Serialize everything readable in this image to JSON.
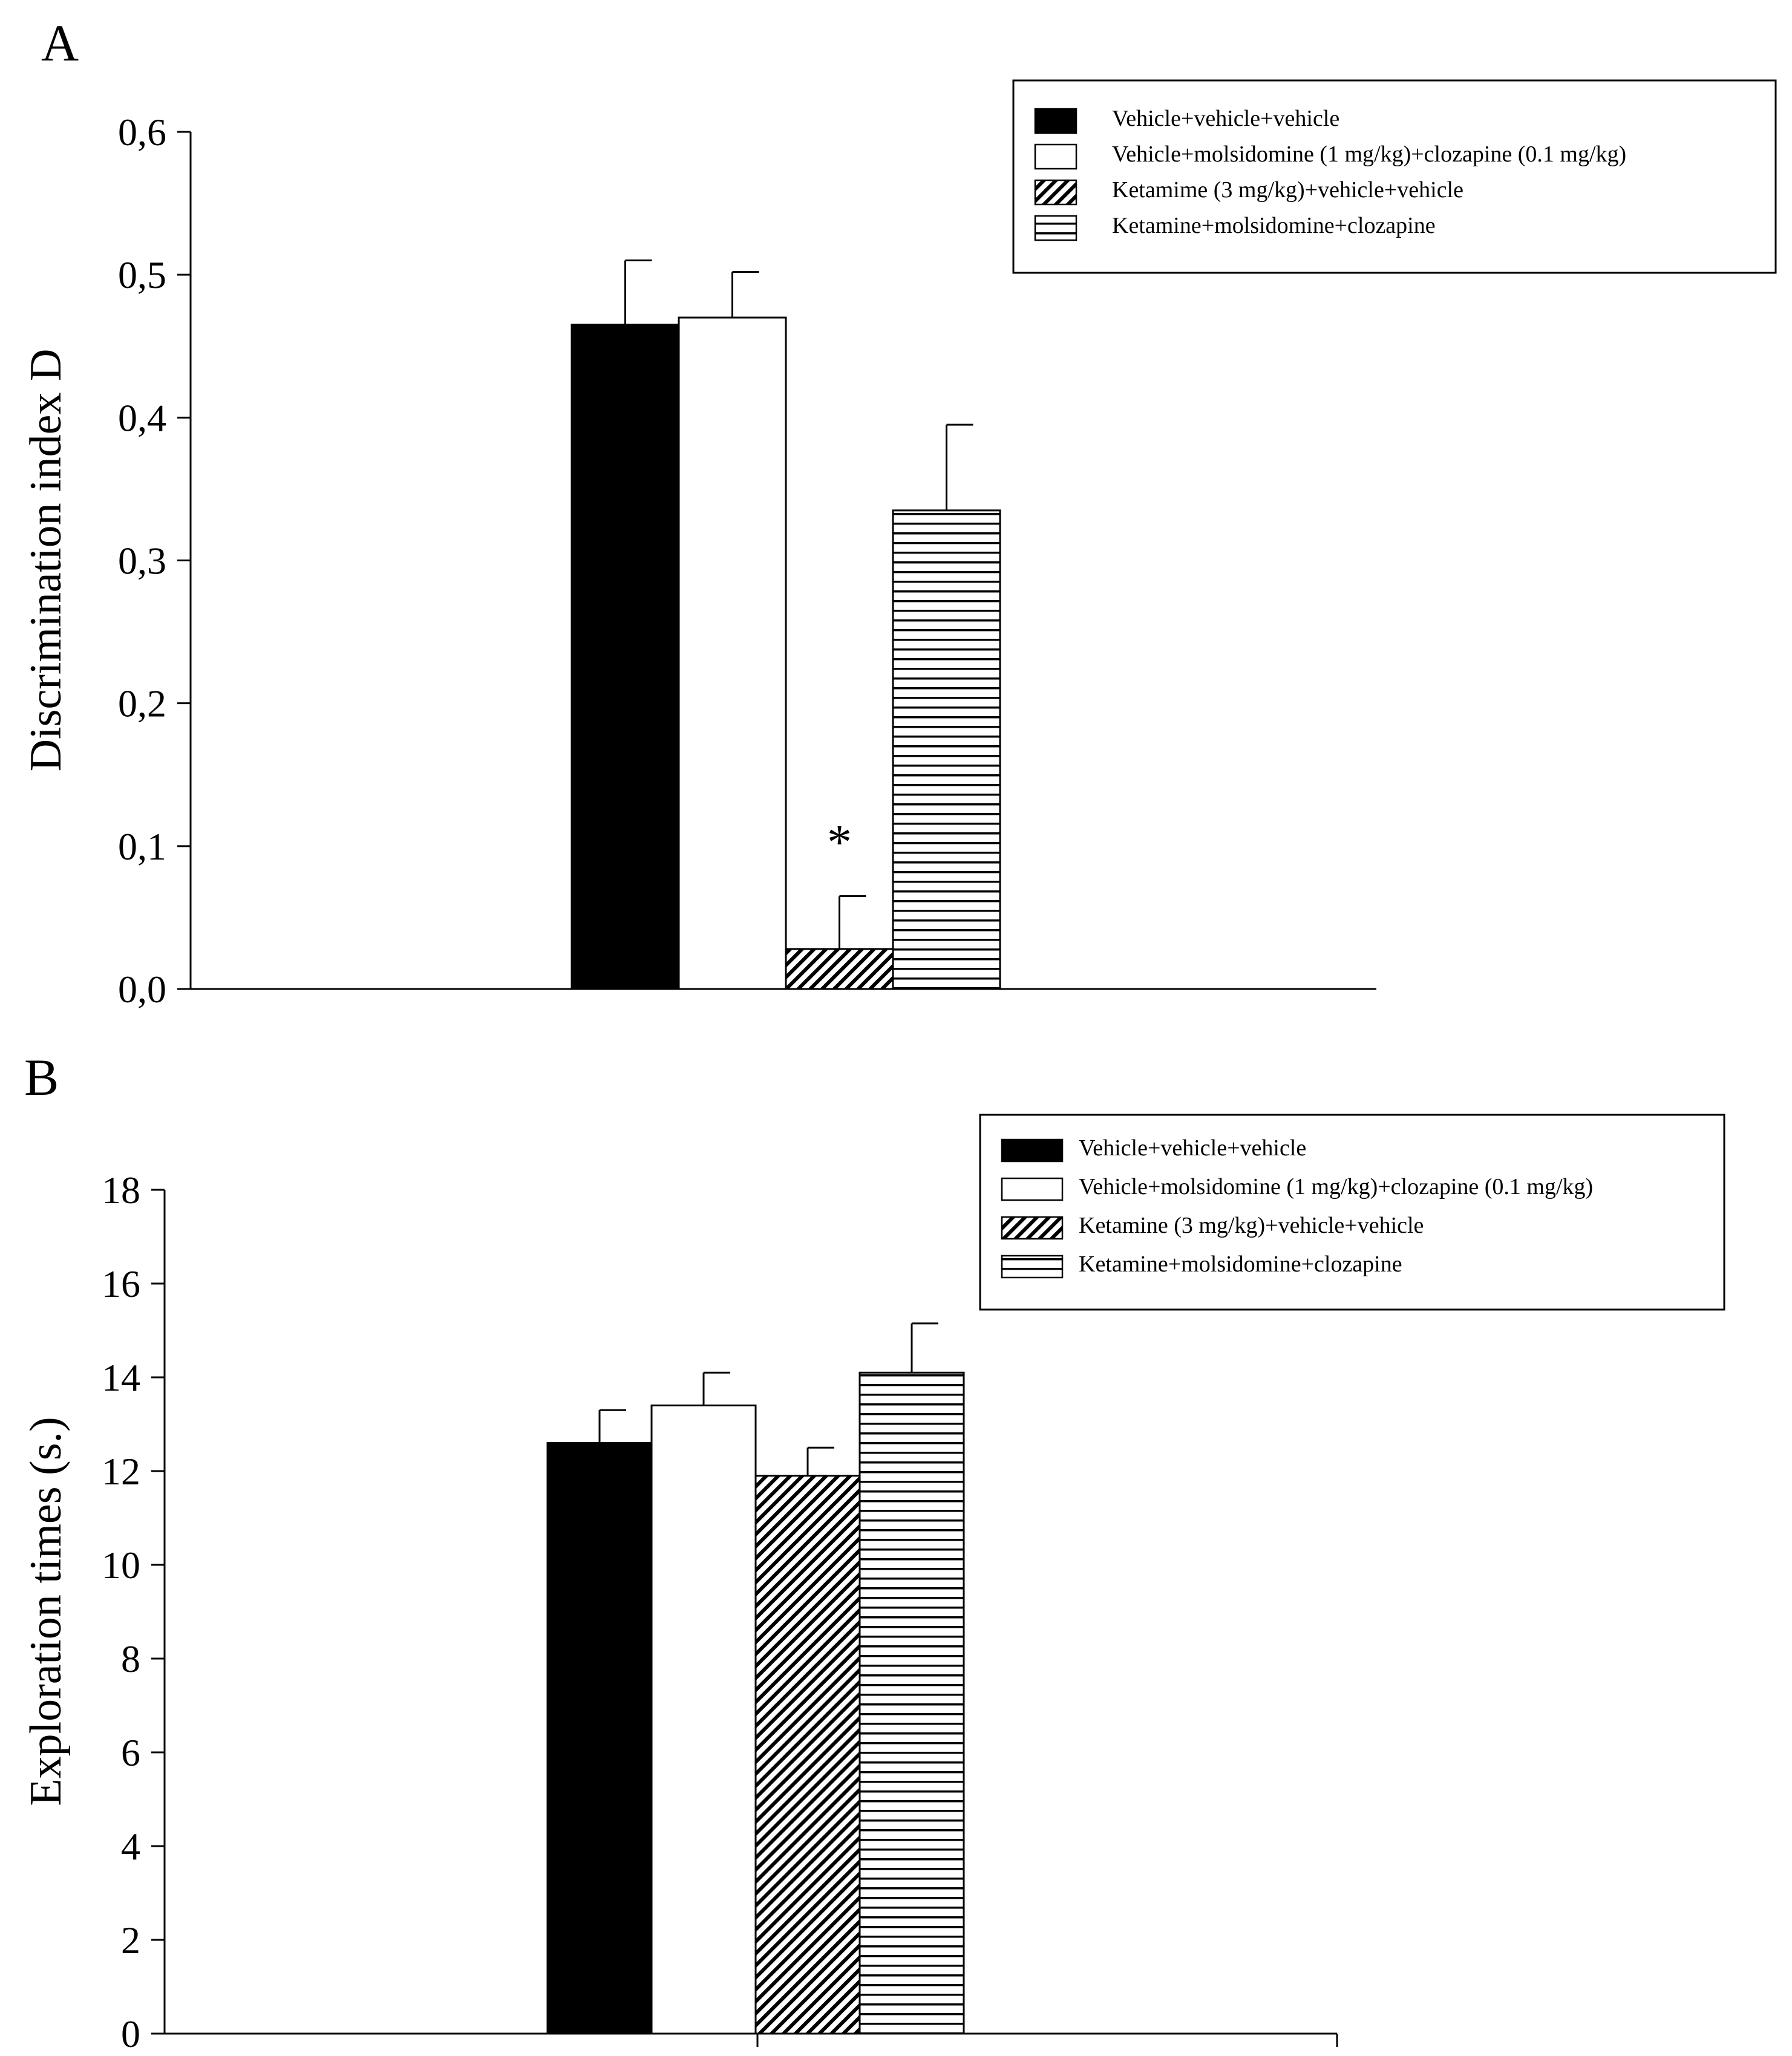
{
  "chart_data": [
    {
      "type": "bar",
      "panel_label": "A",
      "ylabel": "Discrimination index D",
      "ylim": [
        0,
        0.6
      ],
      "yticks": [
        "0,0",
        "0,1",
        "0,2",
        "0,3",
        "0,4",
        "0,5",
        "0,6"
      ],
      "legend_position": "top-right",
      "series": [
        {
          "name": "Vehicle+vehicle+vehicle",
          "value": 0.465,
          "error": 0.045,
          "fill": "solid",
          "annotation": ""
        },
        {
          "name": "Vehicle+molsidomine (1 mg/kg)+clozapine (0.1 mg/kg)",
          "value": 0.47,
          "error": 0.032,
          "fill": "white",
          "annotation": ""
        },
        {
          "name": "Ketamime (3 mg/kg)+vehicle+vehicle",
          "value": 0.028,
          "error": 0.037,
          "fill": "diagonal",
          "annotation": "*"
        },
        {
          "name": "Ketamine+molsidomine+clozapine",
          "value": 0.335,
          "error": 0.06,
          "fill": "horizontal",
          "annotation": ""
        }
      ]
    },
    {
      "type": "bar",
      "panel_label": "B",
      "ylabel": "Exploration times (s.)",
      "ylim": [
        0,
        18
      ],
      "yticks": [
        "0",
        "2",
        "4",
        "6",
        "8",
        "10",
        "12",
        "14",
        "16",
        "18"
      ],
      "legend_position": "top-right",
      "series": [
        {
          "name": "Vehicle+vehicle+vehicle",
          "value": 12.6,
          "error": 0.7,
          "fill": "solid",
          "annotation": ""
        },
        {
          "name": "Vehicle+molsidomine (1 mg/kg)+clozapine (0.1 mg/kg)",
          "value": 13.4,
          "error": 0.7,
          "fill": "white",
          "annotation": ""
        },
        {
          "name": "Ketamine (3 mg/kg)+vehicle+vehicle",
          "value": 11.9,
          "error": 0.6,
          "fill": "diagonal",
          "annotation": ""
        },
        {
          "name": "Ketamine+molsidomine+clozapine",
          "value": 14.1,
          "error": 1.05,
          "fill": "horizontal",
          "annotation": ""
        }
      ]
    }
  ]
}
